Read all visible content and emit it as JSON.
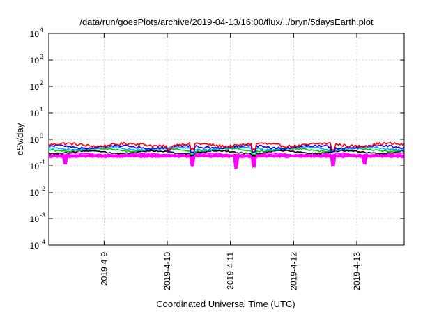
{
  "chart_data": {
    "type": "line",
    "title": "/data/run/goesPlots/archive/2019-04-13/16:00/flux/../bryn/5daysEarth.plot",
    "xlabel": "Coordinated Universal Time (UTC)",
    "ylabel": "cSv/day",
    "yscale": "log",
    "ylim": [
      0.0001,
      10000
    ],
    "xlim": [
      "2019-04-08 03:00",
      "2019-04-13 18:00"
    ],
    "grid": true,
    "legend": "none",
    "yticks": [
      {
        "value": 0.0001,
        "base": "10",
        "exp": "-4"
      },
      {
        "value": 0.001,
        "base": "10",
        "exp": "-3"
      },
      {
        "value": 0.01,
        "base": "10",
        "exp": "-2"
      },
      {
        "value": 0.1,
        "base": "10",
        "exp": "-1"
      },
      {
        "value": 1,
        "base": "10",
        "exp": "0"
      },
      {
        "value": 10,
        "base": "10",
        "exp": "1"
      },
      {
        "value": 100,
        "base": "10",
        "exp": "2"
      },
      {
        "value": 1000,
        "base": "10",
        "exp": "3"
      },
      {
        "value": 10000,
        "base": "10",
        "exp": "4"
      }
    ],
    "xticks": [
      {
        "value": "2019-04-09 00:00",
        "label": "2019-4-9"
      },
      {
        "value": "2019-04-10 00:00",
        "label": "2019-4-10"
      },
      {
        "value": "2019-04-11 00:00",
        "label": "2019-4-11"
      },
      {
        "value": "2019-04-12 00:00",
        "label": "2019-4-12"
      },
      {
        "value": "2019-04-13 00:00",
        "label": "2019-4-13"
      }
    ],
    "series": [
      {
        "color": "#ff0000",
        "level": 0.62,
        "noise": 0.12,
        "dips": [
          {
            "t": "2019-04-10 00:40",
            "f": 0.7
          },
          {
            "t": "2019-04-10 09:30",
            "f": 0.6
          },
          {
            "t": "2019-04-11 09:00",
            "f": 0.6
          },
          {
            "t": "2019-04-12 15:00",
            "f": 0.65
          }
        ]
      },
      {
        "color": "#0000ff",
        "level": 0.52,
        "noise": 0.1,
        "dips": [
          {
            "t": "2019-04-10 00:40",
            "f": 0.7
          },
          {
            "t": "2019-04-10 09:30",
            "f": 0.6
          },
          {
            "t": "2019-04-11 09:00",
            "f": 0.6
          },
          {
            "t": "2019-04-12 15:00",
            "f": 0.65
          }
        ]
      },
      {
        "color": "#00aaff",
        "level": 0.45,
        "noise": 0.08,
        "dips": [
          {
            "t": "2019-04-10 09:30",
            "f": 0.7
          },
          {
            "t": "2019-04-11 09:00",
            "f": 0.7
          }
        ]
      },
      {
        "color": "#00c800",
        "level": 0.4,
        "noise": 0.06,
        "dips": [
          {
            "t": "2019-04-10 09:30",
            "f": 0.75
          },
          {
            "t": "2019-04-11 09:00",
            "f": 0.75
          }
        ]
      },
      {
        "color": "#000000",
        "level": 0.33,
        "noise": 0.05,
        "dips": [
          {
            "t": "2019-04-10 09:30",
            "f": 0.8
          },
          {
            "t": "2019-04-11 09:00",
            "f": 0.8
          }
        ]
      },
      {
        "color": "#ff00ff",
        "level": 0.27,
        "noise": 0.05,
        "dips": [
          {
            "t": "2019-04-08 09:00",
            "f": 0.55
          },
          {
            "t": "2019-04-10 09:30",
            "f": 0.45
          },
          {
            "t": "2019-04-11 02:00",
            "f": 0.38
          },
          {
            "t": "2019-04-11 09:00",
            "f": 0.42
          },
          {
            "t": "2019-04-12 15:00",
            "f": 0.45
          },
          {
            "t": "2019-04-13 03:00",
            "f": 0.55
          }
        ]
      }
    ],
    "band": {
      "color": "#ff00ff",
      "low": 0.21,
      "high": 0.27
    }
  }
}
